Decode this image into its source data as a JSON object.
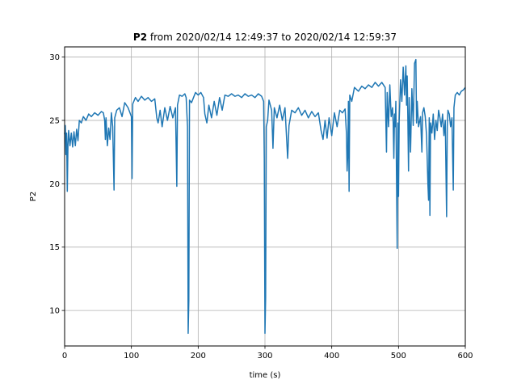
{
  "chart_data": {
    "type": "line",
    "title": {
      "bold": "P2",
      "rest": " from 2020/02/14 12:49:37 to 2020/02/14 12:59:37"
    },
    "xlabel": "time (s)",
    "ylabel": "P2",
    "xlim": [
      0,
      600
    ],
    "ylim": [
      7.2,
      30.8
    ],
    "xticks": [
      0,
      100,
      200,
      300,
      400,
      500,
      600
    ],
    "yticks": [
      10,
      15,
      20,
      25,
      30
    ],
    "grid": true,
    "series": [
      {
        "color": "#1f77b4",
        "points": [
          [
            0,
            23.9
          ],
          [
            1,
            24.6
          ],
          [
            2,
            22.3
          ],
          [
            3,
            24.0
          ],
          [
            4,
            19.4
          ],
          [
            5,
            23.1
          ],
          [
            6,
            24.2
          ],
          [
            8,
            23.0
          ],
          [
            10,
            24.0
          ],
          [
            12,
            22.9
          ],
          [
            14,
            24.1
          ],
          [
            16,
            23.0
          ],
          [
            18,
            24.3
          ],
          [
            20,
            23.4
          ],
          [
            22,
            25.0
          ],
          [
            25,
            24.8
          ],
          [
            28,
            25.3
          ],
          [
            32,
            25.0
          ],
          [
            36,
            25.5
          ],
          [
            40,
            25.3
          ],
          [
            45,
            25.6
          ],
          [
            50,
            25.4
          ],
          [
            55,
            25.7
          ],
          [
            58,
            25.6
          ],
          [
            60,
            25.0
          ],
          [
            61,
            23.5
          ],
          [
            62,
            25.2
          ],
          [
            64,
            23.0
          ],
          [
            66,
            24.4
          ],
          [
            68,
            23.5
          ],
          [
            70,
            25.6
          ],
          [
            72,
            24.5
          ],
          [
            74,
            19.5
          ],
          [
            75,
            25.2
          ],
          [
            78,
            25.8
          ],
          [
            82,
            26.0
          ],
          [
            86,
            25.3
          ],
          [
            90,
            26.4
          ],
          [
            95,
            26.0
          ],
          [
            100,
            25.3
          ],
          [
            101,
            20.4
          ],
          [
            102,
            26.3
          ],
          [
            106,
            26.8
          ],
          [
            110,
            26.5
          ],
          [
            115,
            26.9
          ],
          [
            120,
            26.6
          ],
          [
            125,
            26.8
          ],
          [
            130,
            26.5
          ],
          [
            135,
            26.7
          ],
          [
            138,
            25.2
          ],
          [
            140,
            24.8
          ],
          [
            143,
            25.8
          ],
          [
            146,
            24.5
          ],
          [
            150,
            26.0
          ],
          [
            154,
            25.0
          ],
          [
            158,
            26.1
          ],
          [
            162,
            25.2
          ],
          [
            166,
            26.0
          ],
          [
            168,
            19.8
          ],
          [
            169,
            26.2
          ],
          [
            172,
            27.0
          ],
          [
            176,
            26.9
          ],
          [
            180,
            27.1
          ],
          [
            182,
            26.8
          ],
          [
            184,
            24.5
          ],
          [
            185,
            8.2
          ],
          [
            186,
            10.8
          ],
          [
            187,
            26.6
          ],
          [
            190,
            26.4
          ],
          [
            193,
            26.8
          ],
          [
            196,
            27.2
          ],
          [
            200,
            27.0
          ],
          [
            204,
            27.2
          ],
          [
            208,
            26.8
          ],
          [
            210,
            25.5
          ],
          [
            213,
            24.8
          ],
          [
            216,
            26.2
          ],
          [
            220,
            25.2
          ],
          [
            224,
            26.5
          ],
          [
            228,
            25.4
          ],
          [
            232,
            26.8
          ],
          [
            236,
            25.8
          ],
          [
            240,
            27.0
          ],
          [
            245,
            26.9
          ],
          [
            250,
            27.1
          ],
          [
            255,
            26.9
          ],
          [
            260,
            27.0
          ],
          [
            265,
            26.8
          ],
          [
            270,
            27.1
          ],
          [
            275,
            26.9
          ],
          [
            280,
            27.0
          ],
          [
            285,
            26.8
          ],
          [
            290,
            27.1
          ],
          [
            295,
            26.9
          ],
          [
            298,
            26.5
          ],
          [
            299,
            22.0
          ],
          [
            300,
            8.2
          ],
          [
            301,
            11.0
          ],
          [
            302,
            24.5
          ],
          [
            304,
            25.0
          ],
          [
            306,
            26.6
          ],
          [
            310,
            25.8
          ],
          [
            312,
            22.8
          ],
          [
            314,
            26.0
          ],
          [
            318,
            25.2
          ],
          [
            322,
            26.2
          ],
          [
            326,
            25.0
          ],
          [
            330,
            26.0
          ],
          [
            334,
            22.0
          ],
          [
            336,
            24.6
          ],
          [
            340,
            25.8
          ],
          [
            345,
            25.6
          ],
          [
            350,
            26.0
          ],
          [
            355,
            25.4
          ],
          [
            360,
            25.8
          ],
          [
            365,
            25.2
          ],
          [
            370,
            25.7
          ],
          [
            375,
            25.3
          ],
          [
            380,
            25.6
          ],
          [
            384,
            24.2
          ],
          [
            387,
            23.5
          ],
          [
            390,
            25.0
          ],
          [
            393,
            23.6
          ],
          [
            396,
            25.2
          ],
          [
            400,
            23.8
          ],
          [
            404,
            25.6
          ],
          [
            408,
            24.5
          ],
          [
            412,
            25.8
          ],
          [
            416,
            25.6
          ],
          [
            420,
            25.9
          ],
          [
            422,
            24.0
          ],
          [
            423,
            21.0
          ],
          [
            424,
            22.3
          ],
          [
            425,
            26.5
          ],
          [
            426,
            19.4
          ],
          [
            427,
            27.0
          ],
          [
            430,
            26.5
          ],
          [
            434,
            27.6
          ],
          [
            440,
            27.3
          ],
          [
            445,
            27.7
          ],
          [
            450,
            27.5
          ],
          [
            455,
            27.8
          ],
          [
            460,
            27.6
          ],
          [
            465,
            28.0
          ],
          [
            470,
            27.7
          ],
          [
            475,
            28.0
          ],
          [
            480,
            27.6
          ],
          [
            482,
            22.5
          ],
          [
            483,
            27.2
          ],
          [
            485,
            24.5
          ],
          [
            487,
            27.8
          ],
          [
            489,
            25.3
          ],
          [
            491,
            26.0
          ],
          [
            492,
            24.8
          ],
          [
            493,
            22.0
          ],
          [
            494,
            25.5
          ],
          [
            495,
            24.5
          ],
          [
            496,
            26.5
          ],
          [
            497,
            20.5
          ],
          [
            498,
            14.9
          ],
          [
            499,
            24.8
          ],
          [
            500,
            19.0
          ],
          [
            501,
            25.0
          ],
          [
            503,
            28.2
          ],
          [
            505,
            26.5
          ],
          [
            507,
            29.2
          ],
          [
            509,
            27.0
          ],
          [
            511,
            29.3
          ],
          [
            512,
            26.2
          ],
          [
            513,
            28.5
          ],
          [
            514,
            25.0
          ],
          [
            515,
            21.0
          ],
          [
            516,
            26.8
          ],
          [
            518,
            22.5
          ],
          [
            520,
            27.5
          ],
          [
            522,
            24.6
          ],
          [
            524,
            29.5
          ],
          [
            526,
            29.8
          ],
          [
            527,
            24.8
          ],
          [
            528,
            26.5
          ],
          [
            530,
            24.5
          ],
          [
            533,
            25.3
          ],
          [
            535,
            22.5
          ],
          [
            536,
            25.6
          ],
          [
            538,
            26.0
          ],
          [
            540,
            25.3
          ],
          [
            542,
            23.8
          ],
          [
            544,
            20.0
          ],
          [
            545,
            18.7
          ],
          [
            546,
            25.2
          ],
          [
            547,
            17.5
          ],
          [
            548,
            24.8
          ],
          [
            550,
            24.0
          ],
          [
            552,
            25.5
          ],
          [
            554,
            23.5
          ],
          [
            556,
            25.0
          ],
          [
            558,
            24.2
          ],
          [
            560,
            25.8
          ],
          [
            562,
            25.2
          ],
          [
            564,
            24.5
          ],
          [
            566,
            25.5
          ],
          [
            568,
            23.8
          ],
          [
            570,
            25.0
          ],
          [
            572,
            17.4
          ],
          [
            573,
            24.5
          ],
          [
            574,
            25.8
          ],
          [
            576,
            25.5
          ],
          [
            578,
            24.5
          ],
          [
            580,
            25.2
          ],
          [
            582,
            19.5
          ],
          [
            583,
            26.0
          ],
          [
            585,
            27.0
          ],
          [
            588,
            27.2
          ],
          [
            591,
            27.0
          ],
          [
            594,
            27.3
          ],
          [
            597,
            27.4
          ],
          [
            600,
            27.6
          ]
        ]
      }
    ]
  }
}
